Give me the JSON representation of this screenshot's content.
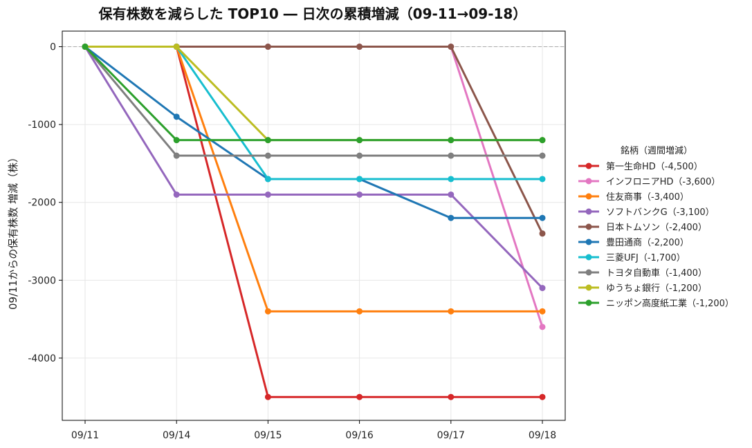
{
  "chart_data": {
    "type": "line",
    "title": "保有株数を減らした TOP10 ― 日次の累積増減（09-11→09-18）",
    "xlabel": "",
    "ylabel": "09/11からの保有株数 増減（株）",
    "x": [
      "09/11",
      "09/14",
      "09/15",
      "09/16",
      "09/17",
      "09/18"
    ],
    "ylim": [
      -4800,
      200
    ],
    "yticks": [
      0,
      -1000,
      -2000,
      -3000,
      -4000
    ],
    "ytick_labels": [
      "0",
      "-1000",
      "-2000",
      "-3000",
      "-4000"
    ],
    "grid": true,
    "zero_line": true,
    "legend_title": "銘柄（週間増減）",
    "legend_position": "right",
    "series": [
      {
        "name": "第一生命HD（-4,500）",
        "color": "#d62728",
        "values": [
          0,
          0,
          -4500,
          -4500,
          -4500,
          -4500
        ]
      },
      {
        "name": "インフロニアHD（-3,600）",
        "color": "#e377c2",
        "values": [
          0,
          0,
          0,
          0,
          0,
          -3600
        ]
      },
      {
        "name": "住友商事（-3,400）",
        "color": "#ff7f0e",
        "values": [
          0,
          0,
          -3400,
          -3400,
          -3400,
          -3400
        ]
      },
      {
        "name": "ソフトバンクG（-3,100）",
        "color": "#9467bd",
        "values": [
          0,
          -1900,
          -1900,
          -1900,
          -1900,
          -3100
        ]
      },
      {
        "name": "日本トムソン（-2,400）",
        "color": "#8c564b",
        "values": [
          0,
          0,
          0,
          0,
          0,
          -2400
        ]
      },
      {
        "name": "豊田通商（-2,200）",
        "color": "#1f77b4",
        "values": [
          0,
          -900,
          -1700,
          -1700,
          -2200,
          -2200
        ]
      },
      {
        "name": "三菱UFJ（-1,700）",
        "color": "#17becf",
        "values": [
          0,
          0,
          -1700,
          -1700,
          -1700,
          -1700
        ]
      },
      {
        "name": "トヨタ自動車（-1,400）",
        "color": "#7f7f7f",
        "values": [
          0,
          -1400,
          -1400,
          -1400,
          -1400,
          -1400
        ]
      },
      {
        "name": "ゆうちょ銀行（-1,200）",
        "color": "#bcbd22",
        "values": [
          0,
          0,
          -1200,
          -1200,
          -1200,
          -1200
        ]
      },
      {
        "name": "ニッポン高度紙工業（-1,200）",
        "color": "#2ca02c",
        "values": [
          0,
          -1200,
          -1200,
          -1200,
          -1200,
          -1200
        ]
      }
    ]
  }
}
